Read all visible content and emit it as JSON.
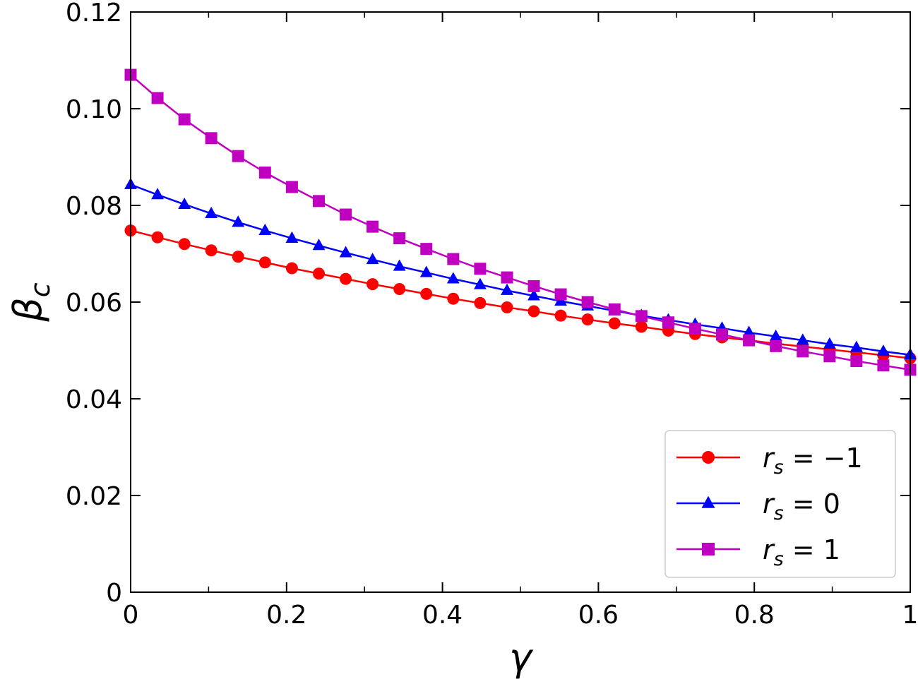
{
  "chart_data": {
    "type": "line",
    "title": "",
    "xlabel": "γ",
    "ylabel": "β",
    "ylabel_sub": "c",
    "xlim": [
      0,
      1
    ],
    "ylim": [
      0,
      0.12
    ],
    "x_ticks": [
      "0",
      "0.2",
      "0.4",
      "0.6",
      "0.8",
      "1"
    ],
    "y_ticks": [
      "0",
      "0.02",
      "0.04",
      "0.06",
      "0.08",
      "0.10",
      "0.12"
    ],
    "x_tick_values": [
      0,
      0.2,
      0.4,
      0.6,
      0.8,
      1.0
    ],
    "y_tick_values": [
      0,
      0.02,
      0.04,
      0.06,
      0.08,
      0.1,
      0.12
    ],
    "x_minor_step": 0.1,
    "grid": false,
    "legend_position": "bottom-right",
    "x": [
      0,
      0.0345,
      0.069,
      0.1034,
      0.1379,
      0.1724,
      0.2069,
      0.2414,
      0.2759,
      0.3103,
      0.3448,
      0.3793,
      0.4138,
      0.4483,
      0.4828,
      0.5172,
      0.5517,
      0.5862,
      0.6207,
      0.6552,
      0.6897,
      0.7241,
      0.7586,
      0.7931,
      0.8276,
      0.8621,
      0.8966,
      0.931,
      0.9655,
      1.0
    ],
    "series": [
      {
        "name_var": "r",
        "name_sub": "s",
        "name_rel": " = ",
        "name_val": "−1",
        "color": "#ff0000",
        "marker": "circle",
        "values": [
          0.0748,
          0.0734,
          0.072,
          0.0707,
          0.0694,
          0.0682,
          0.067,
          0.0659,
          0.0648,
          0.0637,
          0.0627,
          0.0617,
          0.0607,
          0.0598,
          0.0589,
          0.0581,
          0.0572,
          0.0564,
          0.0556,
          0.0549,
          0.0541,
          0.0534,
          0.0527,
          0.0521,
          0.0514,
          0.0508,
          0.0502,
          0.0496,
          0.049,
          0.0484
        ]
      },
      {
        "name_var": "r",
        "name_sub": "s",
        "name_rel": " = ",
        "name_val": "0",
        "color": "#0000ff",
        "marker": "triangle",
        "values": [
          0.0843,
          0.0822,
          0.0802,
          0.0783,
          0.0765,
          0.0748,
          0.0732,
          0.0717,
          0.0702,
          0.0688,
          0.0674,
          0.0661,
          0.0648,
          0.0636,
          0.0624,
          0.0613,
          0.0602,
          0.0592,
          0.0582,
          0.0572,
          0.0563,
          0.0554,
          0.0546,
          0.0537,
          0.0529,
          0.0521,
          0.0513,
          0.0506,
          0.0498,
          0.0491
        ]
      },
      {
        "name_var": "r",
        "name_sub": "s",
        "name_rel": " = ",
        "name_val": "1",
        "color": "#c000c0",
        "marker": "square",
        "values": [
          0.107,
          0.1022,
          0.0978,
          0.0939,
          0.0902,
          0.0868,
          0.0838,
          0.0809,
          0.0781,
          0.0756,
          0.0732,
          0.071,
          0.0689,
          0.0669,
          0.0651,
          0.0633,
          0.0616,
          0.06,
          0.0585,
          0.0571,
          0.0558,
          0.0545,
          0.0533,
          0.0521,
          0.0509,
          0.0498,
          0.0488,
          0.0478,
          0.0469,
          0.046
        ]
      }
    ]
  }
}
